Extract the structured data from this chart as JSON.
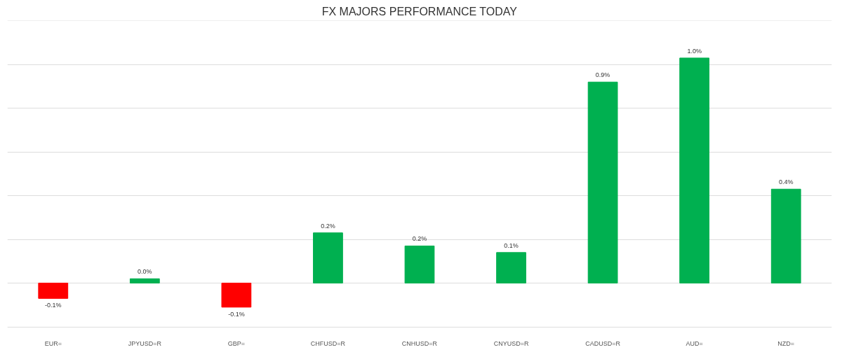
{
  "chart_data": {
    "type": "bar",
    "title": "FX MAJORS PERFORMANCE TODAY",
    "categories": [
      "EUR=",
      "JPYUSD=R",
      "GBP=",
      "CHFUSD=R",
      "CNHUSD=R",
      "CNYUSD=R",
      "CADUSD=R",
      "AUD=",
      "NZD="
    ],
    "values": [
      -0.07,
      0.02,
      -0.11,
      0.23,
      0.17,
      0.14,
      0.92,
      1.03,
      0.43
    ],
    "colors": [
      "#ff0000",
      "#00b050",
      "#ff0000",
      "#00b050",
      "#00b050",
      "#00b050",
      "#00b050",
      "#00b050",
      "#00b050"
    ],
    "value_labels": [
      "-0.1%",
      "0.0%",
      "-0.1%",
      "0.2%",
      "0.2%",
      "0.1%",
      "0.9%",
      "1.0%",
      "0.4%"
    ],
    "tick_labels": "x",
    "grid": "y"
  }
}
